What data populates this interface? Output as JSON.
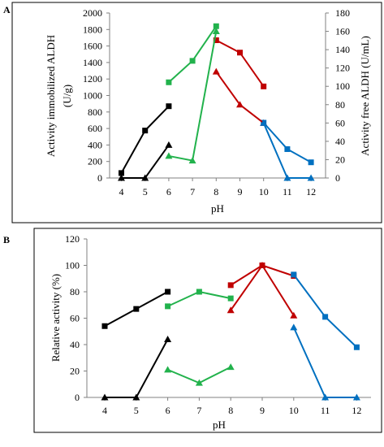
{
  "panels": [
    {
      "letter": "A",
      "chart_data": {
        "type": "line",
        "x_ticks": [
          "4",
          "5",
          "6",
          "7",
          "8",
          "9",
          "10",
          "11",
          "12"
        ],
        "xlabel": "pH",
        "ylabel_left": "Activity  immobilized ALDH (U/g)",
        "ylabel_right": "Activity  free ALDH (U/mL)",
        "ylim_left": [
          0,
          2000
        ],
        "ylim_right": [
          0,
          180
        ],
        "yticks_left": [
          "0",
          "200",
          "400",
          "600",
          "800",
          "1000",
          "1200",
          "1400",
          "1600",
          "1800",
          "2000"
        ],
        "yticks_right": [
          "0",
          "20",
          "40",
          "60",
          "80",
          "100",
          "120",
          "140",
          "160",
          "180"
        ],
        "grid": false,
        "series": [
          {
            "axis": "left",
            "marker": "square",
            "color": "#000000",
            "x": [
              4,
              5,
              6
            ],
            "y": [
              60,
              575,
              870
            ]
          },
          {
            "axis": "left",
            "marker": "square",
            "color": "#22b24c",
            "x": [
              6,
              7,
              8
            ],
            "y": [
              1160,
              1420,
              1840
            ]
          },
          {
            "axis": "left",
            "marker": "square",
            "color": "#c00000",
            "x": [
              8,
              9,
              10
            ],
            "y": [
              1670,
              1520,
              1110
            ]
          },
          {
            "axis": "left",
            "marker": "square",
            "color": "#0070c0",
            "x": [
              10,
              11,
              12
            ],
            "y": [
              670,
              350,
              190
            ]
          },
          {
            "axis": "right",
            "marker": "triangle",
            "color": "#000000",
            "x": [
              4,
              5,
              6
            ],
            "y": [
              0,
              0,
              36
            ]
          },
          {
            "axis": "right",
            "marker": "triangle",
            "color": "#22b24c",
            "x": [
              6,
              7,
              8
            ],
            "y": [
              24,
              19,
              160
            ]
          },
          {
            "axis": "right",
            "marker": "triangle",
            "color": "#c00000",
            "x": [
              8,
              9,
              10
            ],
            "y": [
              116,
              80,
              60
            ]
          },
          {
            "axis": "right",
            "marker": "triangle",
            "color": "#0070c0",
            "x": [
              10,
              11,
              12
            ],
            "y": [
              60,
              0,
              0
            ]
          }
        ]
      }
    },
    {
      "letter": "B",
      "chart_data": {
        "type": "line",
        "x_ticks": [
          "4",
          "5",
          "6",
          "7",
          "8",
          "9",
          "10",
          "11",
          "12"
        ],
        "xlabel": "pH",
        "ylabel_left": "Relative activity  (%)",
        "ylim_left": [
          0,
          120
        ],
        "yticks_left": [
          "0",
          "20",
          "40",
          "60",
          "80",
          "100",
          "120"
        ],
        "grid": false,
        "series": [
          {
            "axis": "left",
            "marker": "square",
            "color": "#000000",
            "x": [
              4,
              5,
              6
            ],
            "y": [
              54,
              67,
              80
            ]
          },
          {
            "axis": "left",
            "marker": "square",
            "color": "#22b24c",
            "x": [
              6,
              7,
              8
            ],
            "y": [
              69,
              80,
              75
            ]
          },
          {
            "axis": "left",
            "marker": "square",
            "color": "#c00000",
            "x": [
              8,
              9,
              10
            ],
            "y": [
              85,
              100,
              92
            ]
          },
          {
            "axis": "left",
            "marker": "square",
            "color": "#0070c0",
            "x": [
              10,
              11,
              12
            ],
            "y": [
              93,
              61,
              38
            ]
          },
          {
            "axis": "left",
            "marker": "triangle",
            "color": "#000000",
            "x": [
              4,
              5,
              6
            ],
            "y": [
              0,
              0,
              44
            ]
          },
          {
            "axis": "left",
            "marker": "triangle",
            "color": "#22b24c",
            "x": [
              6,
              7,
              8
            ],
            "y": [
              21,
              11,
              23
            ]
          },
          {
            "axis": "left",
            "marker": "triangle",
            "color": "#c00000",
            "x": [
              8,
              9,
              10
            ],
            "y": [
              66,
              100,
              62
            ]
          },
          {
            "axis": "left",
            "marker": "triangle",
            "color": "#0070c0",
            "x": [
              10,
              11,
              12
            ],
            "y": [
              53,
              0,
              0
            ]
          }
        ]
      }
    }
  ]
}
